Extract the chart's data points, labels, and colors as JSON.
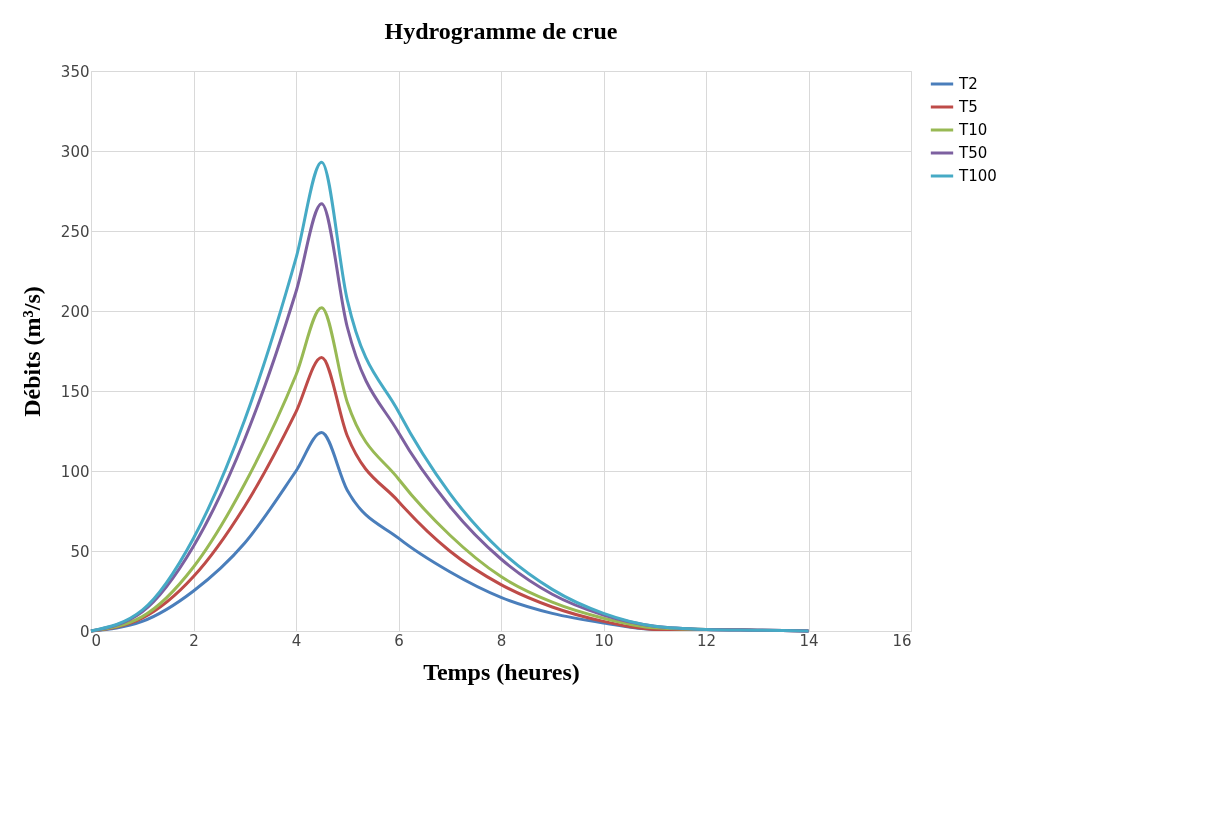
{
  "chart_data": {
    "type": "line",
    "title": "Hydrogramme de crue",
    "xlabel": "Temps (heures)",
    "ylabel": "Débits (m³/s)",
    "x": [
      0,
      1,
      2,
      3,
      4,
      4.5,
      5,
      6,
      7,
      8,
      9,
      10,
      11,
      12,
      13,
      14
    ],
    "series": [
      {
        "name": "T2",
        "color": "#4a7ebb",
        "values": [
          0,
          6,
          25,
          55,
          100,
          124,
          88,
          58,
          37,
          21,
          11,
          5,
          1,
          1,
          0.5,
          0
        ]
      },
      {
        "name": "T5",
        "color": "#be4b48",
        "values": [
          0,
          8,
          34,
          78,
          137,
          171,
          122,
          81,
          50,
          29,
          15,
          6,
          1,
          1,
          0.5,
          0
        ]
      },
      {
        "name": "T10",
        "color": "#98b954",
        "values": [
          0,
          9,
          40,
          92,
          160,
          202,
          143,
          95,
          60,
          34,
          18,
          8,
          2,
          1,
          null,
          null
        ]
      },
      {
        "name": "T50",
        "color": "#7d60a0",
        "values": [
          0,
          12,
          53,
          120,
          212,
          267,
          190,
          124,
          78,
          45,
          23,
          10,
          3,
          1,
          0.5,
          0
        ]
      },
      {
        "name": "T100",
        "color": "#46aac5",
        "values": [
          0,
          13,
          58,
          132,
          233,
          293,
          207,
          137,
          86,
          50,
          26,
          11,
          3,
          1,
          0.5,
          0
        ]
      }
    ],
    "xlim": [
      0,
      16
    ],
    "xticks": [
      0,
      2,
      4,
      6,
      8,
      10,
      12,
      14,
      16
    ],
    "ylim": [
      0,
      350
    ],
    "yticks": [
      0,
      50,
      100,
      150,
      200,
      250,
      300,
      350
    ],
    "grid": true,
    "legend": "right",
    "marker": "none",
    "line_style": "solid"
  }
}
